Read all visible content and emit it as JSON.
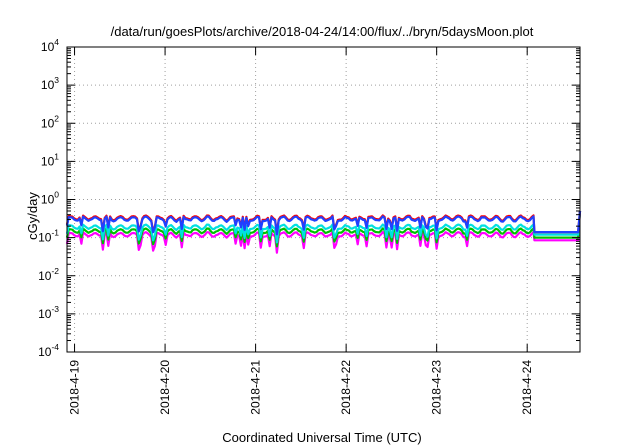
{
  "chart_data": {
    "type": "line",
    "title": "/data/run/goesPlots/archive/2018-04-24/14:00/flux/../bryn/5daysMoon.plot",
    "xlabel": "Coordinated Universal Time (UTC)",
    "ylabel": "cGy/day",
    "y_scale": "log",
    "ylim": [
      0.0001,
      10000
    ],
    "y_ticks": [
      {
        "base": "10",
        "exp": "4",
        "value": 10000
      },
      {
        "base": "10",
        "exp": "3",
        "value": 1000
      },
      {
        "base": "10",
        "exp": "2",
        "value": 100
      },
      {
        "base": "10",
        "exp": "1",
        "value": 10
      },
      {
        "base": "10",
        "exp": "0",
        "value": 1
      },
      {
        "base": "10",
        "exp": "-1",
        "value": 0.1
      },
      {
        "base": "10",
        "exp": "-2",
        "value": 0.01
      },
      {
        "base": "10",
        "exp": "-3",
        "value": 0.001
      },
      {
        "base": "10",
        "exp": "-4",
        "value": 0.0001
      }
    ],
    "xlim": [
      "2018-04-18T22:00",
      "2018-04-24T14:00"
    ],
    "x_ticks": [
      {
        "label": "2018-4-19",
        "value": "2018-04-19T00:00"
      },
      {
        "label": "2018-4-20",
        "value": "2018-04-20T00:00"
      },
      {
        "label": "2018-4-21",
        "value": "2018-04-21T00:00"
      },
      {
        "label": "2018-4-22",
        "value": "2018-04-22T00:00"
      },
      {
        "label": "2018-4-23",
        "value": "2018-04-23T00:00"
      },
      {
        "label": "2018-4-24",
        "value": "2018-04-24T00:00"
      }
    ],
    "grid": true,
    "series_levels": [
      {
        "color": "#ff00ff",
        "typical_value": 0.12,
        "final_value": 0.085
      },
      {
        "color": "#00c000",
        "typical_value": 0.15,
        "final_value": 0.1
      },
      {
        "color": "#00e0e0",
        "typical_value": 0.19,
        "final_value": 0.12
      },
      {
        "color": "#ff0000",
        "typical_value": 0.33,
        "final_value": 0.14
      },
      {
        "color": "#2040ff",
        "typical_value": 0.31,
        "final_value": 0.14
      }
    ],
    "end_spike_value": 0.5
  }
}
